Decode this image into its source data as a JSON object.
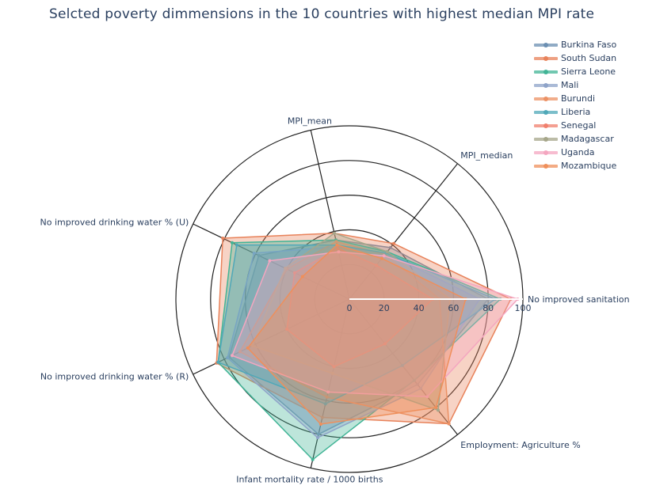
{
  "chart_data": {
    "type": "radar",
    "title": "Selcted poverty dimmensions in the 10 countries with highest median MPI rate",
    "axes": [
      "No improved sanitation",
      "MPI_median",
      "MPI_mean",
      "No improved drinking water % (U)",
      "No improved drinking water % (R)",
      "Infant mortality rate / 1000 births",
      "Employment: Agriculture %"
    ],
    "radial_range": [
      0,
      100
    ],
    "radial_ticks": [
      "0",
      "20",
      "40",
      "60",
      "80",
      "100"
    ],
    "legend_position": "top-right",
    "series": [
      {
        "name": "Burkina Faso",
        "color": "#6b8fb2",
        "values": [
          80,
          38,
          35,
          58,
          77,
          80,
          63
        ]
      },
      {
        "name": "South Sudan",
        "color": "#e8825a",
        "values": [
          93,
          41,
          39,
          81,
          85,
          70,
          92
        ]
      },
      {
        "name": "Sierra Leone",
        "color": "#41b496",
        "values": [
          87,
          35,
          35,
          75,
          84,
          95,
          60
        ]
      },
      {
        "name": "Mali",
        "color": "#8ea3c8",
        "values": [
          75,
          34,
          31,
          61,
          78,
          82,
          66
        ]
      },
      {
        "name": "Burundi",
        "color": "#ec9164",
        "values": [
          52,
          33,
          34,
          40,
          70,
          58,
          92
        ]
      },
      {
        "name": "Liberia",
        "color": "#4fa8b8",
        "values": [
          84,
          34,
          32,
          72,
          84,
          62,
          49
        ]
      },
      {
        "name": "Senegal",
        "color": "#f07f6d",
        "values": [
          48,
          25,
          30,
          35,
          40,
          40,
          33
        ]
      },
      {
        "name": "Madagascar",
        "color": "#a6a68a",
        "values": [
          58,
          35,
          39,
          41,
          62,
          44,
          82
        ]
      },
      {
        "name": "Uganda",
        "color": "#f4a6c0",
        "values": [
          97,
          32,
          28,
          51,
          75,
          55,
          72
        ]
      },
      {
        "name": "Mozambique",
        "color": "#ef8f5b",
        "values": [
          67,
          30,
          32,
          30,
          65,
          74,
          80
        ]
      }
    ]
  }
}
